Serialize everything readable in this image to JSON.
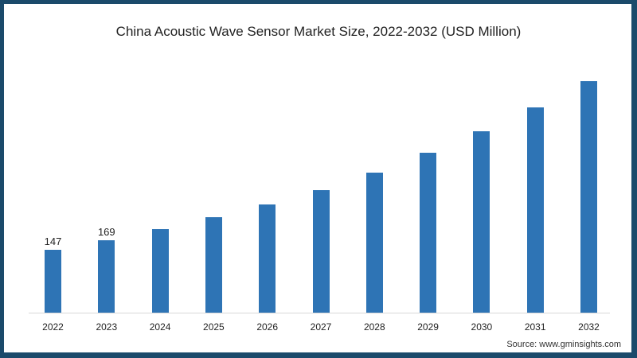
{
  "title": "China Acoustic Wave Sensor Market Size, 2022-2032 (USD Million)",
  "source": "Source: www.gminsights.com",
  "colors": {
    "bar": "#2e74b5",
    "border": "#1b4a6b"
  },
  "chart_data": {
    "type": "bar",
    "title": "China Acoustic Wave Sensor Market Size, 2022-2032 (USD Million)",
    "xlabel": "",
    "ylabel": "USD Million",
    "categories": [
      "2022",
      "2023",
      "2024",
      "2025",
      "2026",
      "2027",
      "2028",
      "2029",
      "2030",
      "2031",
      "2032"
    ],
    "values": [
      147,
      169,
      195,
      223,
      253,
      286,
      327,
      374,
      424,
      480,
      541
    ],
    "data_labels": {
      "2022": "147",
      "2023": "169"
    },
    "ylim": [
      0,
      560
    ],
    "grid": false,
    "legend": null
  }
}
